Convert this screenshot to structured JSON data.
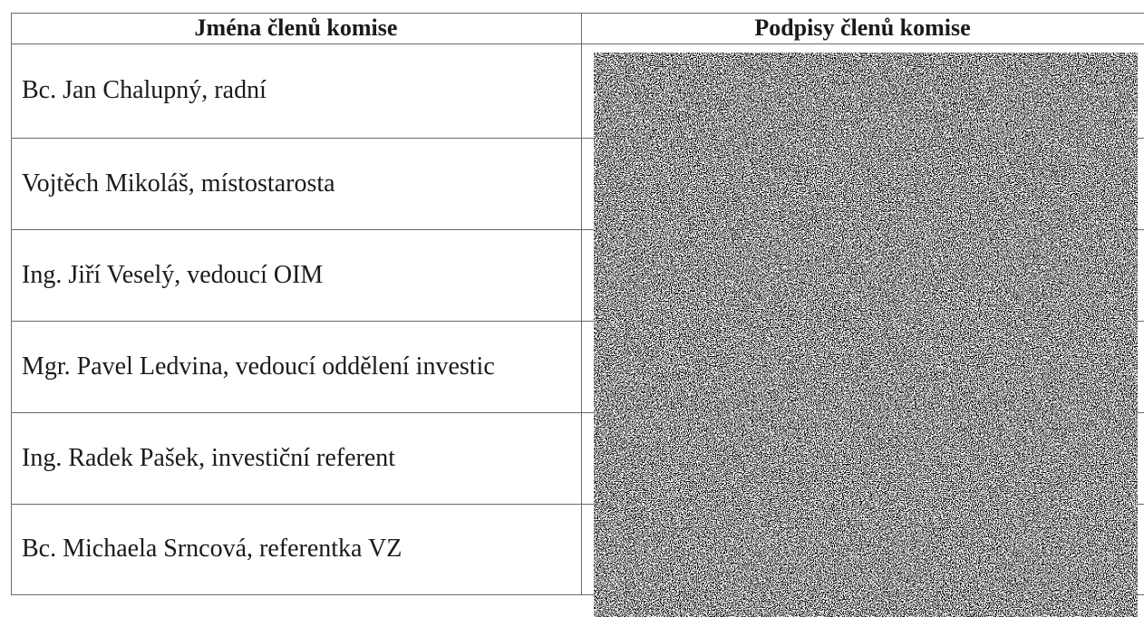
{
  "table": {
    "headers": [
      "Jména členů komise",
      "Podpisy členů komise"
    ],
    "rows": [
      [
        "Bc. Jan Chalupný, radní"
      ],
      [
        "Vojtěch Mikoláš, místostarosta"
      ],
      [
        "Ing. Jiří Veselý, vedoucí OIM"
      ],
      [
        "Mgr. Pavel Ledvina, vedoucí oddělení investic"
      ],
      [
        "Ing. Radek Pašek, investiční referent"
      ],
      [
        "Bc. Michaela Srncová, referentka VZ"
      ]
    ]
  }
}
